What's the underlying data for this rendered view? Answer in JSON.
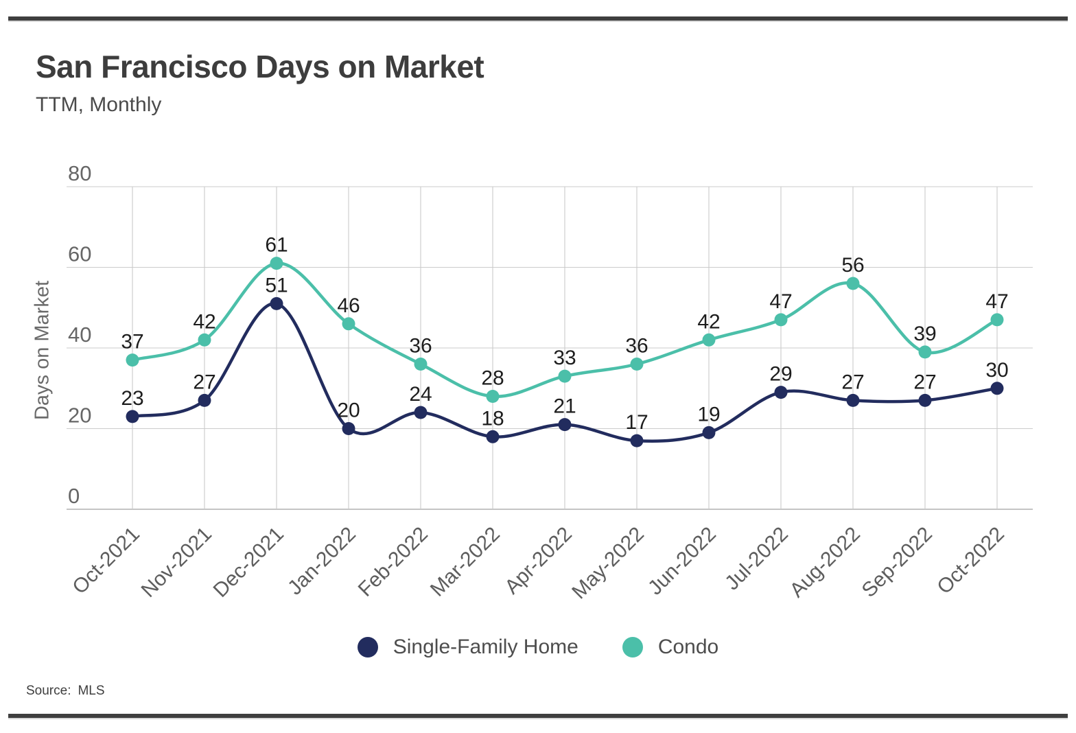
{
  "page": {
    "title": "San Francisco Days on Market",
    "subtitle": "TTM, Monthly",
    "source_label": "Source:",
    "source_value": "MLS"
  },
  "chart_data": {
    "type": "line",
    "title": "San Francisco Days on Market",
    "subtitle": "TTM, Monthly",
    "xlabel": "",
    "ylabel": "Days on Market",
    "ylim": [
      0,
      80
    ],
    "yticks": [
      0,
      20,
      40,
      60,
      80
    ],
    "grid": true,
    "smooth": true,
    "point_labels": true,
    "legend_position": "bottom",
    "categories": [
      "Oct-2021",
      "Nov-2021",
      "Dec-2021",
      "Jan-2022",
      "Feb-2022",
      "Mar-2022",
      "Apr-2022",
      "May-2022",
      "Jun-2022",
      "Jul-2022",
      "Aug-2022",
      "Sep-2022",
      "Oct-2022"
    ],
    "series": [
      {
        "name": "Single-Family Home",
        "color": "#222c5e",
        "values": [
          23,
          27,
          51,
          20,
          24,
          18,
          21,
          17,
          19,
          29,
          27,
          27,
          30
        ]
      },
      {
        "name": "Condo",
        "color": "#4bbfa9",
        "values": [
          37,
          42,
          61,
          46,
          36,
          28,
          33,
          36,
          42,
          47,
          56,
          39,
          47
        ]
      }
    ],
    "source": "Source: MLS"
  },
  "style": {
    "grid_color": "#cbcbcb",
    "axis_color": "#b0b0b0",
    "tick_label_color": "#666666",
    "x_label_color": "#5d5d5d",
    "value_label_color": "#1d1d1d"
  }
}
